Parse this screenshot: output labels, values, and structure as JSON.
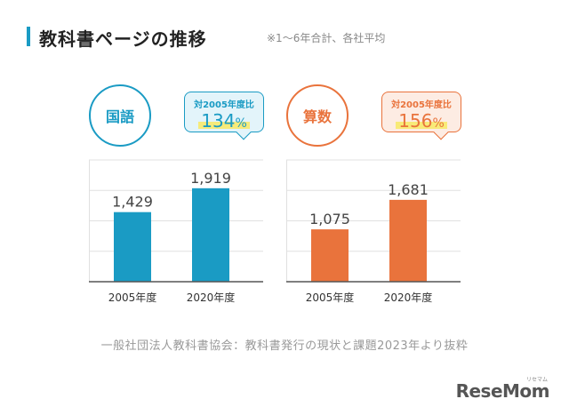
{
  "header": {
    "title": "教科書ページの推移",
    "note": "※1～6年合計、各社平均"
  },
  "colors": {
    "accent_blue": "#1a9bc4",
    "accent_orange": "#e9733c",
    "bubble_blue_bg": "#e3f4fa",
    "bubble_orange_bg": "#fdece3",
    "highlight": "#f7ea6b",
    "grid": "#e0e0e0",
    "axis": "#555555"
  },
  "chart_data": [
    {
      "type": "bar",
      "subject": "国語",
      "categories": [
        "2005年度",
        "2020年度"
      ],
      "values": [
        1429,
        1919
      ],
      "value_labels": [
        "1,429",
        "1,919"
      ],
      "comparison_label": "対2005年度比",
      "comparison_value": "134",
      "comparison_unit": "%",
      "ylim": [
        0,
        2500
      ],
      "grid": true,
      "color": "#1a9bc4"
    },
    {
      "type": "bar",
      "subject": "算数",
      "categories": [
        "2005年度",
        "2020年度"
      ],
      "values": [
        1075,
        1681
      ],
      "value_labels": [
        "1,075",
        "1,681"
      ],
      "comparison_label": "対2005年度比",
      "comparison_value": "156",
      "comparison_unit": "%",
      "ylim": [
        0,
        2500
      ],
      "grid": true,
      "color": "#e9733c"
    }
  ],
  "footer": {
    "source": "一般社団法人教科書協会：教科書発行の現状と課題2023年より抜粋"
  },
  "logo": {
    "text": "ReseMom",
    "small": "リセマム"
  }
}
